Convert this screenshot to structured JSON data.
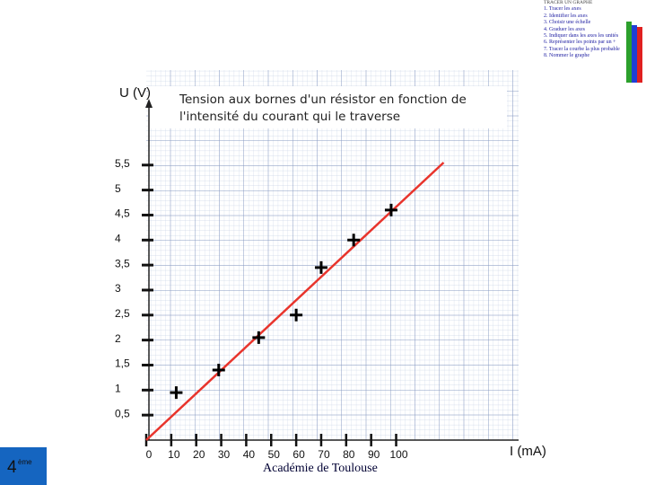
{
  "chart_data": {
    "type": "scatter",
    "title": "Tension aux bornes d'un résistor en fonction de l'intensité du courant qui le traverse",
    "y_label": "U (V)",
    "x_label": "I (mA)",
    "xlim": [
      0,
      149
    ],
    "ylim": [
      0,
      7.4
    ],
    "xticks": [
      0,
      10,
      20,
      30,
      40,
      50,
      60,
      70,
      80,
      90,
      100
    ],
    "yticks": [
      {
        "value": 0.5,
        "label": "0,5"
      },
      1,
      {
        "value": 1.5,
        "label": "1,5"
      },
      2,
      {
        "value": 2.5,
        "label": "2,5"
      },
      3,
      {
        "value": 3.5,
        "label": "3,5"
      },
      4,
      {
        "value": 4.5,
        "label": "4,5"
      },
      5,
      {
        "value": 5.5,
        "label": "5,5"
      }
    ],
    "series": [
      {
        "color": "#000000",
        "marker": "cross",
        "x": [
          12,
          29,
          45,
          60,
          70,
          83,
          98
        ],
        "values": [
          0.95,
          1.4,
          2.05,
          2.5,
          3.45,
          4,
          4.6
        ]
      },
      {
        "color": "#e8342c",
        "marker": "line",
        "x": [
          0,
          119
        ],
        "values": [
          0,
          5.55
        ]
      }
    ]
  },
  "footer": "Académie de Toulouse",
  "page": {
    "number": "4",
    "suffix": "ème"
  },
  "method": {
    "title": "TRACER UN GRAPHE",
    "steps": [
      "1.  Tracer les axes",
      "2.  Identifier les axes",
      "3.  Choisir une échelle",
      "4.  Graduer les axes",
      "5.  Indiquer dans les axes les unités",
      "6.  Représenter les points par un +",
      "7.  Tracer la courbe la plus probable",
      "8.  Nommer le graphe"
    ]
  }
}
